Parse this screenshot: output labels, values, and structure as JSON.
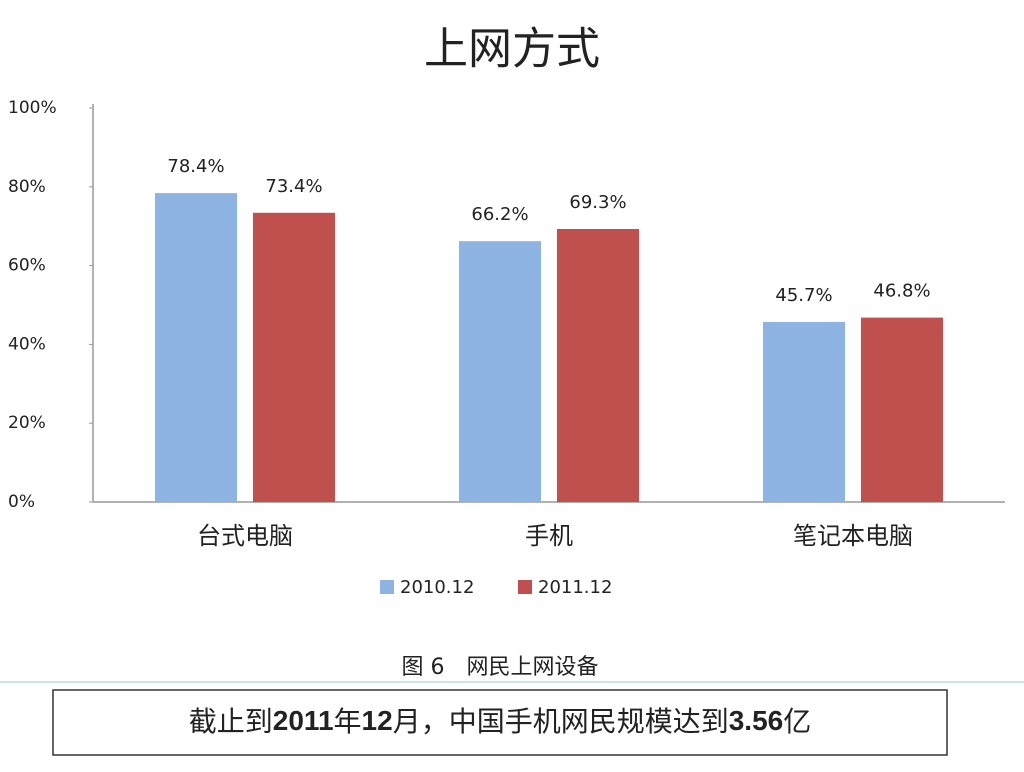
{
  "chart_data": {
    "type": "bar",
    "title": "上网方式",
    "categories": [
      "台式电脑",
      "手机",
      "笔记本电脑"
    ],
    "series": [
      {
        "name": "2010.12",
        "color": "#8db4e2",
        "values": [
          78.4,
          66.2,
          45.7
        ],
        "value_labels": [
          "78.4%",
          "66.2%",
          "45.7%"
        ]
      },
      {
        "name": "2011.12",
        "color": "#c0504d",
        "values": [
          73.4,
          69.3,
          46.8
        ],
        "value_labels": [
          "73.4%",
          "69.3%",
          "46.8%"
        ]
      }
    ],
    "ylim": [
      0,
      100
    ],
    "yticks": [
      {
        "value": 0,
        "label": "0%"
      },
      {
        "value": 20,
        "label": "20%"
      },
      {
        "value": 40,
        "label": "40%"
      },
      {
        "value": 60,
        "label": "60%"
      },
      {
        "value": 80,
        "label": "80%"
      },
      {
        "value": 100,
        "label": "100%"
      }
    ],
    "legend": "bottom",
    "caption": "图 6　网民上网设备"
  },
  "note": {
    "parts": [
      "截止到",
      "2011",
      "年",
      "12",
      "月，中国手机网民规模达到",
      "3.56",
      "亿"
    ]
  }
}
